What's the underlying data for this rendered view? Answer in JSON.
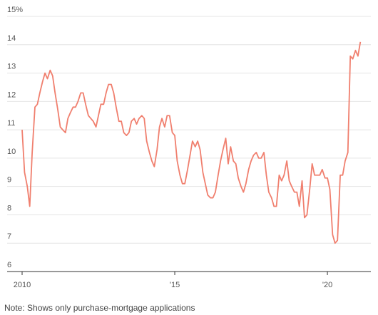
{
  "chart_data": {
    "type": "line",
    "note": "Note: Shows only purchase-mortgage applications",
    "x": [
      2010.0,
      2010.08,
      2010.17,
      2010.25,
      2010.33,
      2010.42,
      2010.5,
      2010.58,
      2010.67,
      2010.75,
      2010.83,
      2010.92,
      2011.0,
      2011.08,
      2011.17,
      2011.25,
      2011.33,
      2011.42,
      2011.5,
      2011.58,
      2011.67,
      2011.75,
      2011.83,
      2011.92,
      2012.0,
      2012.08,
      2012.17,
      2012.25,
      2012.33,
      2012.42,
      2012.5,
      2012.58,
      2012.67,
      2012.75,
      2012.83,
      2012.92,
      2013.0,
      2013.08,
      2013.17,
      2013.25,
      2013.33,
      2013.42,
      2013.5,
      2013.58,
      2013.67,
      2013.75,
      2013.83,
      2013.92,
      2014.0,
      2014.08,
      2014.17,
      2014.25,
      2014.33,
      2014.42,
      2014.5,
      2014.58,
      2014.67,
      2014.75,
      2014.83,
      2014.92,
      2015.0,
      2015.08,
      2015.17,
      2015.25,
      2015.33,
      2015.42,
      2015.5,
      2015.58,
      2015.67,
      2015.75,
      2015.83,
      2015.92,
      2016.0,
      2016.08,
      2016.17,
      2016.25,
      2016.33,
      2016.42,
      2016.5,
      2016.58,
      2016.67,
      2016.75,
      2016.83,
      2016.92,
      2017.0,
      2017.08,
      2017.17,
      2017.25,
      2017.33,
      2017.42,
      2017.5,
      2017.58,
      2017.67,
      2017.75,
      2017.83,
      2017.92,
      2018.0,
      2018.08,
      2018.17,
      2018.25,
      2018.33,
      2018.42,
      2018.5,
      2018.58,
      2018.67,
      2018.75,
      2018.83,
      2018.92,
      2019.0,
      2019.08,
      2019.17,
      2019.25,
      2019.33,
      2019.42,
      2019.5,
      2019.58,
      2019.67,
      2019.75,
      2019.83,
      2019.92,
      2020.0,
      2020.08,
      2020.17,
      2020.25,
      2020.33,
      2020.42,
      2020.5,
      2020.58,
      2020.67,
      2020.75,
      2020.83,
      2020.92,
      2021.0,
      2021.08
    ],
    "series": [
      {
        "color": "#f07f6e",
        "values": [
          11.0,
          9.5,
          9.0,
          8.3,
          10.2,
          11.8,
          11.9,
          12.3,
          12.7,
          13.0,
          12.8,
          13.1,
          12.9,
          12.3,
          11.7,
          11.1,
          11.0,
          10.9,
          11.4,
          11.6,
          11.8,
          11.8,
          12.0,
          12.3,
          12.3,
          11.9,
          11.5,
          11.4,
          11.3,
          11.1,
          11.5,
          11.9,
          11.9,
          12.3,
          12.6,
          12.6,
          12.3,
          11.8,
          11.3,
          11.3,
          10.9,
          10.8,
          10.9,
          11.3,
          11.4,
          11.2,
          11.4,
          11.5,
          11.4,
          10.6,
          10.2,
          9.9,
          9.7,
          10.3,
          11.1,
          11.4,
          11.1,
          11.5,
          11.5,
          10.9,
          10.8,
          9.9,
          9.4,
          9.1,
          9.1,
          9.6,
          10.1,
          10.6,
          10.4,
          10.6,
          10.3,
          9.5,
          9.1,
          8.7,
          8.6,
          8.6,
          8.8,
          9.4,
          9.9,
          10.3,
          10.7,
          9.8,
          10.4,
          9.9,
          9.8,
          9.3,
          9.0,
          8.8,
          9.1,
          9.6,
          9.9,
          10.1,
          10.2,
          10.0,
          10.0,
          10.2,
          9.4,
          8.8,
          8.6,
          8.3,
          8.3,
          9.4,
          9.2,
          9.4,
          9.9,
          9.2,
          9.0,
          8.8,
          8.8,
          8.3,
          9.2,
          7.9,
          8.0,
          8.9,
          9.8,
          9.4,
          9.4,
          9.4,
          9.6,
          9.3,
          9.3,
          8.9,
          7.3,
          7.0,
          7.1,
          9.4,
          9.4,
          9.9,
          10.2,
          13.6,
          13.5,
          13.8,
          13.6,
          14.1
        ]
      }
    ],
    "xlim": [
      2010,
      2021.4
    ],
    "xticks": [
      {
        "value": 2010,
        "label": "2010"
      },
      {
        "value": 2015,
        "label": "'15"
      },
      {
        "value": 2020,
        "label": "'20"
      }
    ],
    "ylim": [
      6,
      15
    ],
    "yticks": [
      6,
      7,
      8,
      9,
      10,
      11,
      12,
      13,
      14,
      {
        "value": 15,
        "label": "15%"
      }
    ],
    "grid": true
  }
}
